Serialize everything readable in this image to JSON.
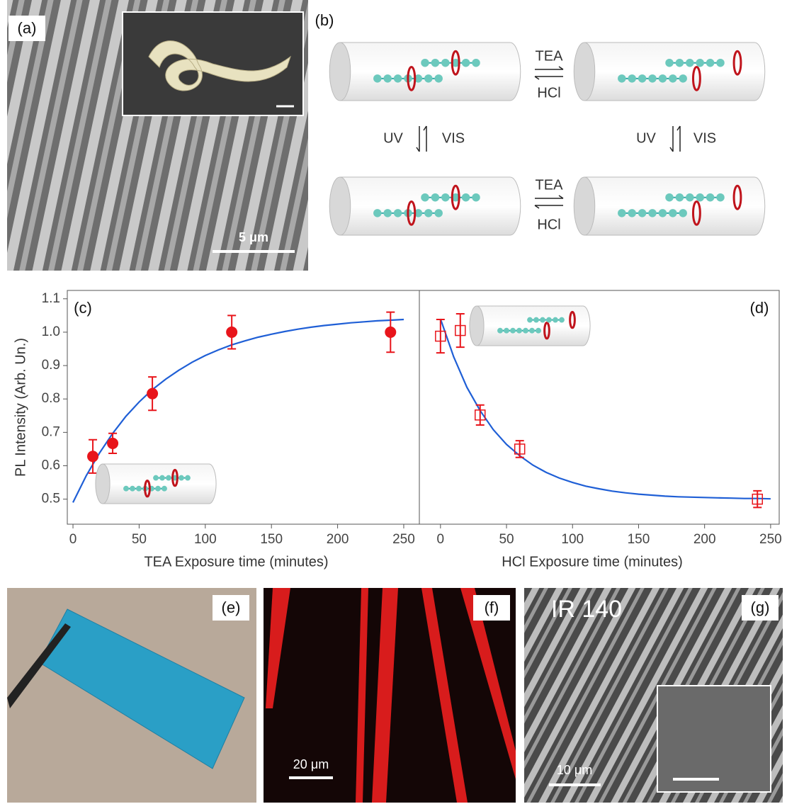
{
  "panels": {
    "a": {
      "label": "(a)",
      "scale_bar": "5 μm"
    },
    "b": {
      "label": "(b)",
      "top_forward": "TEA",
      "top_backward": "HCl",
      "left_down": "UV",
      "left_up": "VIS",
      "right_down": "UV",
      "right_up": "VIS",
      "bottom_forward": "TEA",
      "bottom_backward": "HCl"
    },
    "c": {
      "label": "(c)"
    },
    "d": {
      "label": "(d)"
    },
    "e": {
      "label": "(e)"
    },
    "f": {
      "label": "(f)",
      "scale_bar": "20 μm"
    },
    "g": {
      "label": "(g)",
      "dye": "IR 140",
      "scale_bar": "10 μm"
    }
  },
  "chart_data": [
    {
      "type": "scatter",
      "xlabel": "TEA Exposure time (minutes)",
      "ylabel": "PL Intensity (Arb. Un.)",
      "xlim": [
        -4.3,
        261.8
      ],
      "ylim": [
        0.425,
        1.125
      ],
      "xticks": [
        0,
        50,
        100,
        150,
        200,
        250
      ],
      "yticks": [
        0.5,
        0.6,
        0.7,
        0.8,
        0.9,
        {
          "value": 1,
          "label": "1.0"
        },
        1.1
      ],
      "points": {
        "marker": "circle",
        "color": "#e8151b",
        "x": [
          15,
          30,
          60,
          120,
          240
        ],
        "values": [
          0.628,
          0.667,
          0.816,
          1.0,
          1.0
        ],
        "errors": [
          0.05,
          0.03,
          0.05,
          0.05,
          0.06
        ]
      },
      "fit": {
        "color": "#1f5fd6",
        "x": [
          0,
          10,
          20,
          30,
          40,
          50,
          60,
          70,
          80,
          90,
          100,
          110,
          120,
          130,
          140,
          150,
          160,
          170,
          180,
          190,
          200,
          210,
          220,
          230,
          240,
          250
        ],
        "values": [
          0.49,
          0.57,
          0.638,
          0.697,
          0.748,
          0.791,
          0.828,
          0.859,
          0.886,
          0.91,
          0.93,
          0.947,
          0.962,
          0.974,
          0.985,
          0.994,
          1.002,
          1.009,
          1.015,
          1.02,
          1.024,
          1.028,
          1.031,
          1.034,
          1.036,
          1.038
        ]
      }
    },
    {
      "type": "scatter",
      "xlabel": "HCl Exposure time (minutes)",
      "xlim": [
        -16,
        256.5
      ],
      "ylim": [
        0.425,
        1.125
      ],
      "xticks": [
        0,
        50,
        100,
        150,
        200,
        250
      ],
      "points": {
        "marker": "open-square",
        "color": "#e8151b",
        "x": [
          0,
          15,
          30,
          60,
          240
        ],
        "values": [
          0.988,
          1.005,
          0.752,
          0.65,
          0.5
        ],
        "errors": [
          0.05,
          0.05,
          0.03,
          0.025,
          0.025
        ]
      },
      "fit": {
        "color": "#1f5fd6",
        "x": [
          0,
          10,
          20,
          30,
          40,
          50,
          60,
          70,
          80,
          90,
          100,
          110,
          120,
          130,
          140,
          150,
          160,
          170,
          180,
          190,
          200,
          210,
          220,
          230,
          240,
          250
        ],
        "values": [
          1.04,
          0.926,
          0.835,
          0.765,
          0.708,
          0.664,
          0.63,
          0.602,
          0.58,
          0.563,
          0.55,
          0.539,
          0.531,
          0.524,
          0.519,
          0.515,
          0.512,
          0.509,
          0.507,
          0.506,
          0.505,
          0.504,
          0.503,
          0.502,
          0.502,
          0.501
        ]
      }
    }
  ]
}
